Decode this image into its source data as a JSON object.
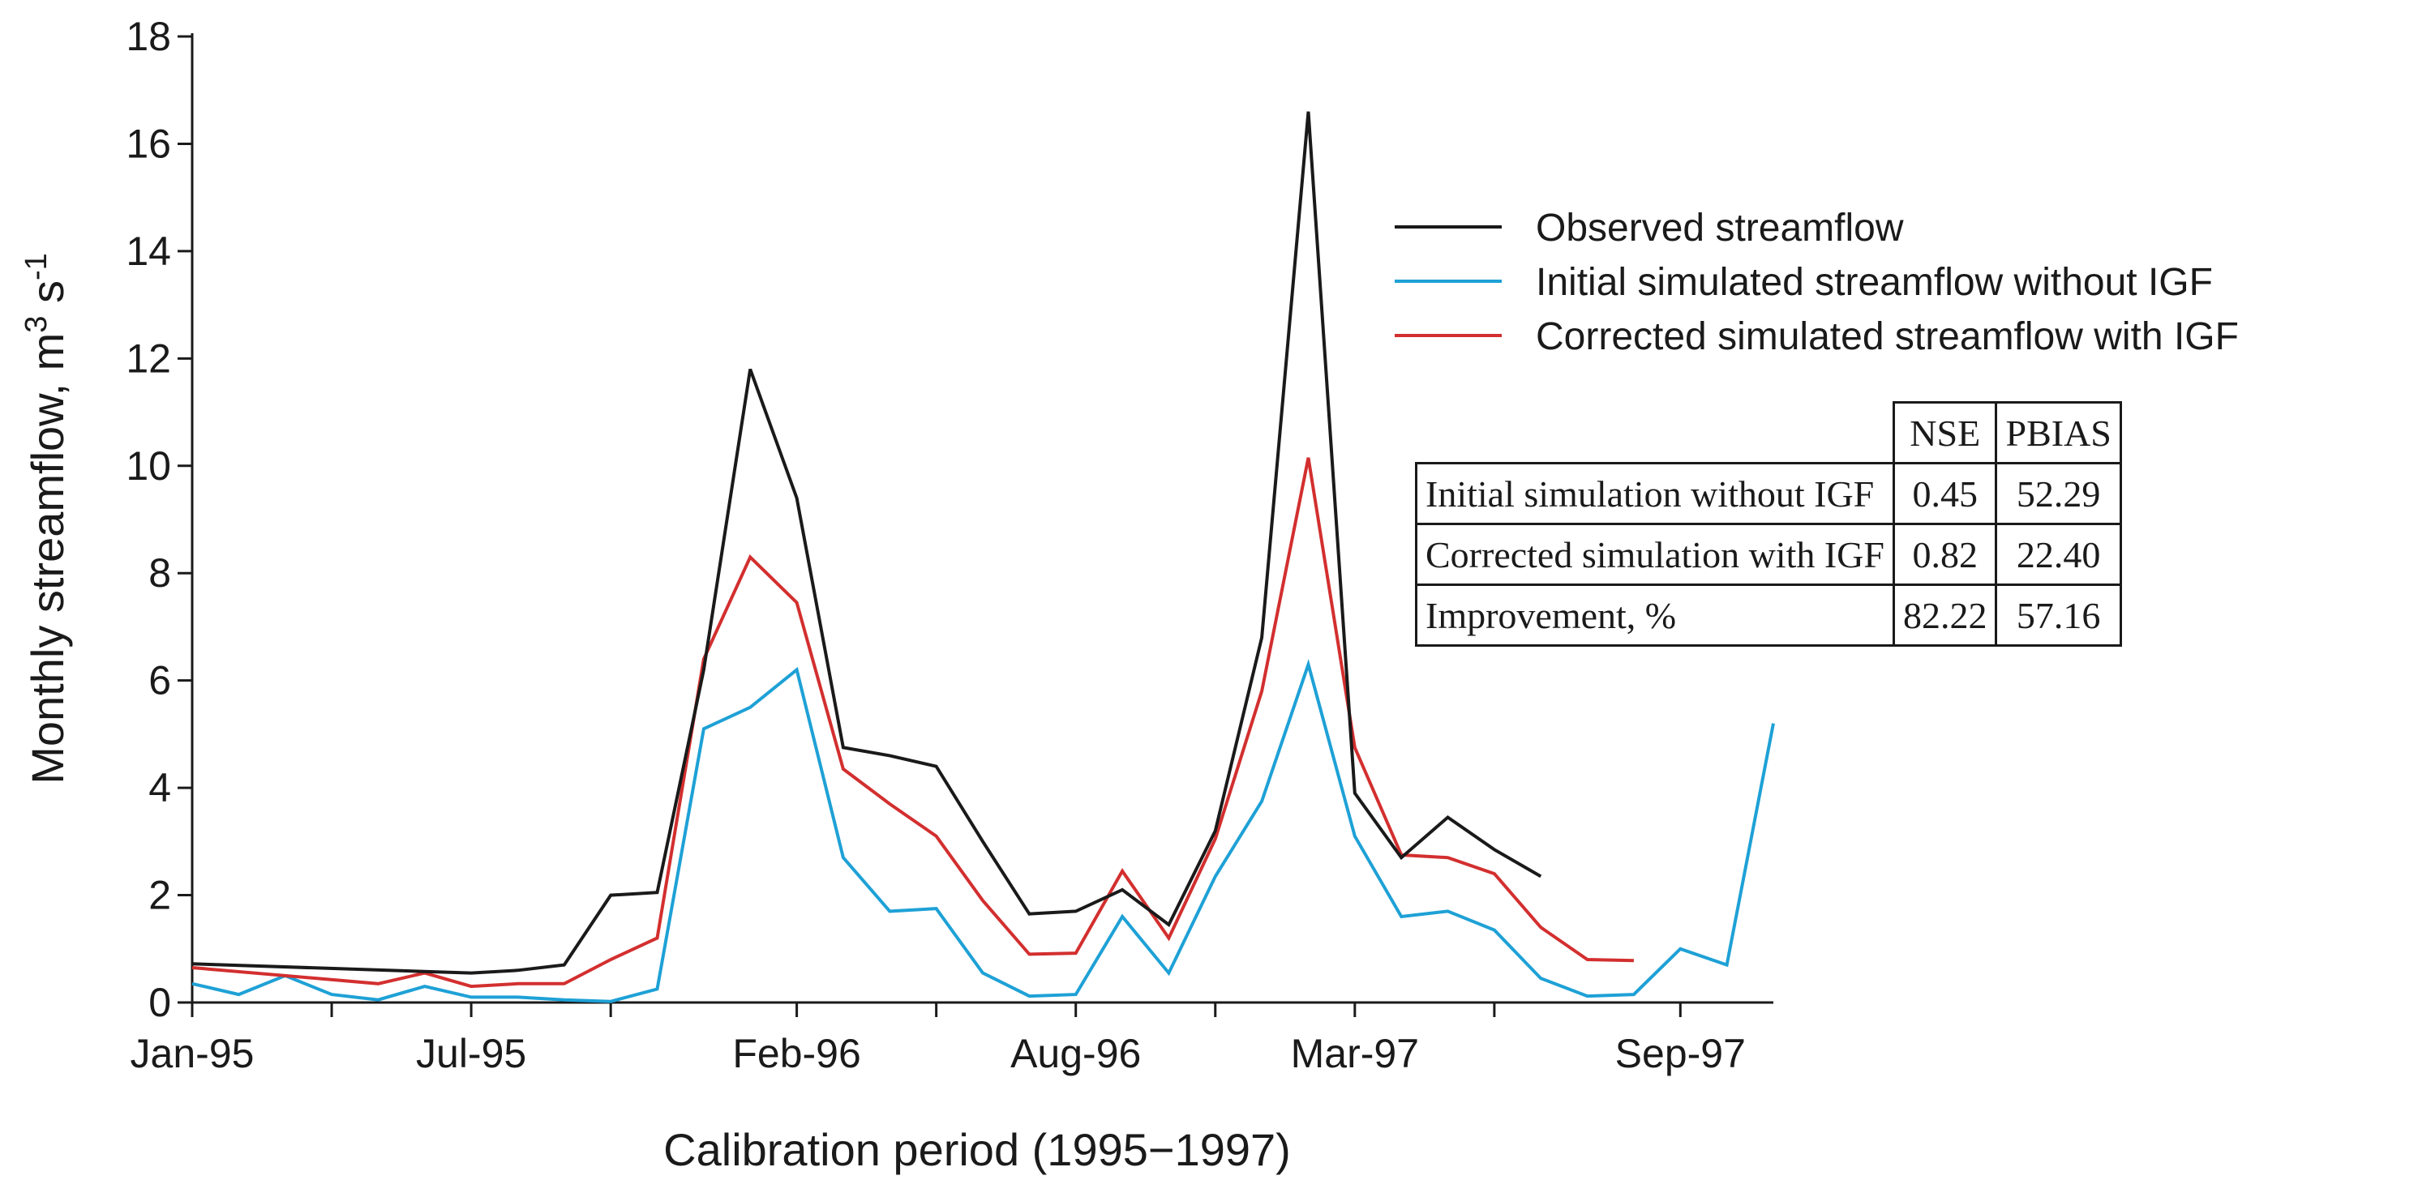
{
  "chart_data": {
    "type": "line",
    "title": "",
    "xlabel": "Calibration period (1995−1997)",
    "ylabel_main": "Monthly streamflow, m",
    "ylabel_sup1": "3",
    "ylabel_mid": " s",
    "ylabel_sup2": "-1",
    "ylim": [
      0,
      18
    ],
    "yticks": [
      0,
      2,
      4,
      6,
      8,
      10,
      12,
      14,
      16,
      18
    ],
    "ytick_labels": [
      "0",
      "2",
      "4",
      "6",
      "8",
      "10",
      "12",
      "14",
      "16",
      "18"
    ],
    "x_count": 35,
    "xticks": [
      0,
      6,
      13,
      19,
      25,
      32
    ],
    "xtick_labels": [
      "Jan-95",
      "Jul-95",
      "Feb-96",
      "Aug-96",
      "Mar-97",
      "Sep-97"
    ],
    "minor_xticks": [
      3,
      9,
      16,
      22,
      28
    ],
    "grid": false,
    "legend_position": "top-right",
    "series": [
      {
        "name": "Observed streamflow",
        "color": "#1a1a1a",
        "x": [
          0,
          6,
          7,
          8,
          9,
          10,
          11,
          12,
          13,
          14,
          15,
          16,
          17,
          18,
          19,
          20,
          21,
          22,
          23,
          24,
          25,
          26,
          27,
          28,
          29
        ],
        "values": [
          0.72,
          0.55,
          0.6,
          0.7,
          2.0,
          2.05,
          6.2,
          11.8,
          9.4,
          4.75,
          4.6,
          4.4,
          3.0,
          1.65,
          1.7,
          2.1,
          1.45,
          3.2,
          6.8,
          16.6,
          3.9,
          2.7,
          3.45,
          2.85,
          2.35
        ]
      },
      {
        "name": "Initial simulated streamflow without IGF",
        "color": "#1ea1d6",
        "x": [
          0,
          1,
          2,
          3,
          4,
          5,
          6,
          7,
          8,
          9,
          10,
          11,
          12,
          13,
          14,
          15,
          16,
          17,
          18,
          19,
          20,
          21,
          22,
          23,
          24,
          25,
          26,
          27,
          28,
          29,
          30,
          31,
          32,
          33,
          34
        ],
        "values": [
          0.35,
          0.15,
          0.5,
          0.15,
          0.05,
          0.3,
          0.1,
          0.1,
          0.05,
          0.02,
          0.25,
          5.1,
          5.5,
          6.2,
          2.7,
          1.7,
          1.75,
          0.55,
          0.12,
          0.15,
          1.6,
          0.55,
          2.35,
          3.75,
          6.3,
          3.1,
          1.6,
          1.7,
          1.35,
          0.45,
          0.12,
          0.15,
          1.0,
          0.7,
          5.2
        ]
      },
      {
        "name": "Corrected simulated streamflow with IGF",
        "color": "#d32f2f",
        "x": [
          0,
          4,
          5,
          6,
          7,
          8,
          9,
          10,
          11,
          12,
          13,
          14,
          15,
          16,
          17,
          18,
          19,
          20,
          21,
          22,
          23,
          24,
          25,
          26,
          27,
          28,
          29,
          30,
          31
        ],
        "values": [
          0.65,
          0.35,
          0.55,
          0.3,
          0.35,
          0.35,
          0.8,
          1.2,
          6.4,
          8.3,
          7.45,
          4.35,
          3.7,
          3.1,
          1.9,
          0.9,
          0.92,
          2.45,
          1.2,
          3.05,
          5.8,
          10.15,
          4.75,
          2.75,
          2.7,
          2.4,
          1.4,
          0.8,
          0.78
        ]
      }
    ]
  },
  "table": {
    "headers": [
      "",
      "NSE",
      "PBIAS"
    ],
    "rows": [
      {
        "label": "Initial simulation without IGF",
        "nse": "0.45",
        "pbias": "52.29"
      },
      {
        "label": "Corrected simulation with IGF",
        "nse": "0.82",
        "pbias": "22.40"
      },
      {
        "label": "Improvement, %",
        "nse": "82.22",
        "pbias": "57.16"
      }
    ]
  }
}
